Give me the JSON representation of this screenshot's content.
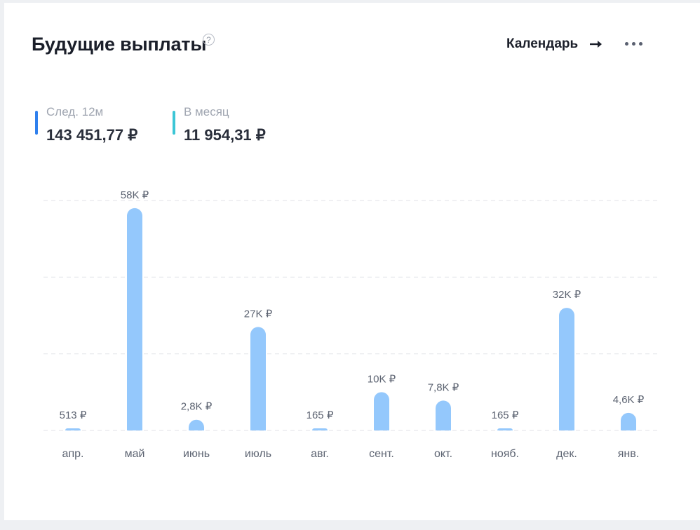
{
  "header": {
    "title": "Будущие выплаты",
    "help_symbol": "?",
    "calendar_label": "Календарь"
  },
  "stats": {
    "next12": {
      "label": "След. 12м",
      "value": "143 451,77 ₽",
      "color": "#2f80ed"
    },
    "monthly": {
      "label": "В месяц",
      "value": "11 954,31 ₽",
      "color": "#3cc6d6"
    }
  },
  "chart_data": {
    "type": "bar",
    "categories": [
      "апр.",
      "май",
      "июнь",
      "июль",
      "авг.",
      "сент.",
      "окт.",
      "нояб.",
      "дек.",
      "янв."
    ],
    "values": [
      513,
      58000,
      2800,
      27000,
      165,
      10000,
      7800,
      165,
      32000,
      4600
    ],
    "data_labels": [
      "513 ₽",
      "58K ₽",
      "2,8K ₽",
      "27K ₽",
      "165 ₽",
      "10K ₽",
      "7,8K ₽",
      "165 ₽",
      "32K ₽",
      "4,6K ₽"
    ],
    "ylim": [
      0,
      60000
    ],
    "grid": true,
    "bar_color": "#94c8fc"
  }
}
